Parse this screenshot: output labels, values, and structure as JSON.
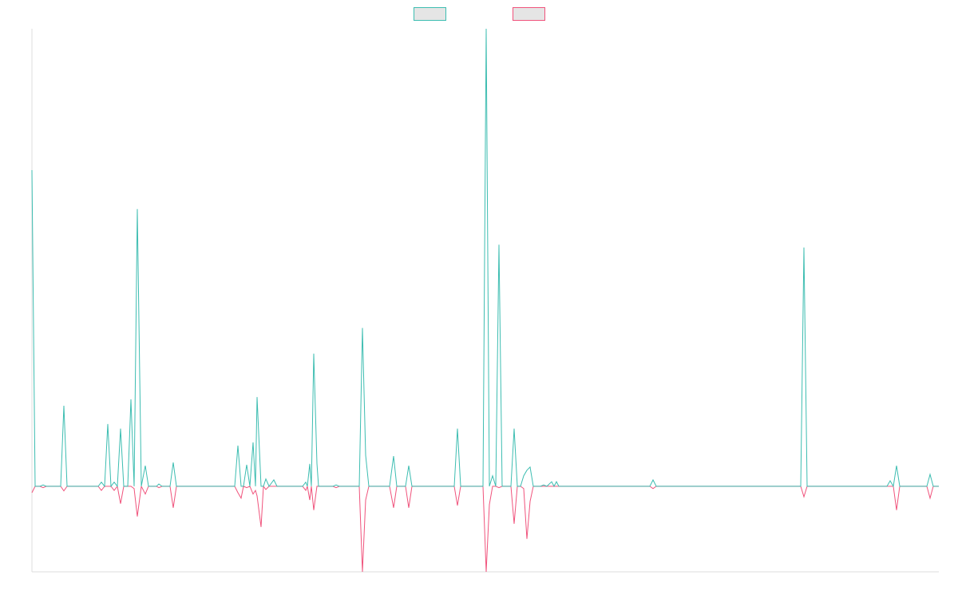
{
  "chart_data": {
    "type": "line",
    "legend": "top",
    "grid": false,
    "xlim": [
      0,
      1136
    ],
    "ylim": [
      -187,
      1000
    ],
    "x": [
      0,
      4,
      10,
      14,
      18,
      36,
      40,
      44,
      83,
      87,
      91,
      95,
      99,
      103,
      107,
      111,
      115,
      120,
      124,
      128,
      132,
      137,
      142,
      146,
      156,
      159,
      163,
      173,
      177,
      181,
      254,
      258,
      262,
      265,
      269,
      273,
      277,
      280,
      282,
      287,
      290,
      293,
      297,
      303,
      307,
      339,
      343,
      345,
      348,
      350,
      353,
      357,
      359,
      377,
      381,
      385,
      410,
      414,
      418,
      422,
      448,
      453,
      457,
      468,
      472,
      476,
      529,
      533,
      537,
      565,
      569,
      573,
      577,
      581,
      585,
      589,
      600,
      604,
      608,
      612,
      616,
      620,
      624,
      628,
      637,
      641,
      645,
      651,
      654,
      657,
      660,
      774,
      778,
      782,
      963,
      967,
      971,
      1071,
      1075,
      1079,
      1083,
      1087,
      1121,
      1125,
      1129,
      1136
    ],
    "series": [
      {
        "color": "#3dbdb1",
        "values": [
          691,
          0,
          0,
          3,
          0,
          0,
          176,
          0,
          0,
          9,
          0,
          136,
          0,
          9,
          0,
          126,
          0,
          0,
          190,
          0,
          606,
          0,
          45,
          0,
          0,
          5,
          0,
          0,
          52,
          0,
          0,
          89,
          0,
          0,
          47,
          0,
          96,
          0,
          195,
          0,
          0,
          16,
          0,
          14,
          0,
          0,
          9,
          0,
          49,
          0,
          290,
          50,
          0,
          0,
          3,
          0,
          0,
          346,
          68,
          0,
          0,
          66,
          0,
          0,
          45,
          0,
          0,
          126,
          0,
          0,
          1000,
          0,
          23,
          0,
          528,
          0,
          0,
          126,
          0,
          0,
          23,
          35,
          42,
          0,
          0,
          3,
          0,
          10,
          0,
          10,
          0,
          0,
          14,
          0,
          0,
          522,
          0,
          0,
          12,
          0,
          45,
          0,
          0,
          26,
          0,
          0
        ]
      },
      {
        "color": "#f0537c",
        "values": [
          -14,
          0,
          0,
          -3,
          0,
          0,
          -10,
          0,
          0,
          -9,
          0,
          0,
          0,
          -9,
          0,
          -38,
          0,
          0,
          0,
          -5,
          -66,
          0,
          -17,
          0,
          0,
          -3,
          0,
          0,
          -47,
          0,
          0,
          -14,
          -26,
          0,
          -3,
          0,
          -17,
          -9,
          -21,
          -89,
          0,
          -7,
          0,
          0,
          0,
          0,
          -9,
          0,
          -30,
          0,
          -52,
          0,
          0,
          0,
          -3,
          0,
          0,
          -187,
          -30,
          0,
          0,
          -47,
          0,
          0,
          -47,
          0,
          0,
          -42,
          0,
          0,
          -187,
          -40,
          0,
          0,
          -3,
          0,
          0,
          -82,
          0,
          0,
          -5,
          -115,
          -33,
          0,
          0,
          0,
          0,
          0,
          0,
          0,
          0,
          0,
          -5,
          0,
          0,
          -23,
          0,
          0,
          0,
          0,
          -52,
          0,
          0,
          -26,
          0,
          0
        ]
      }
    ]
  }
}
